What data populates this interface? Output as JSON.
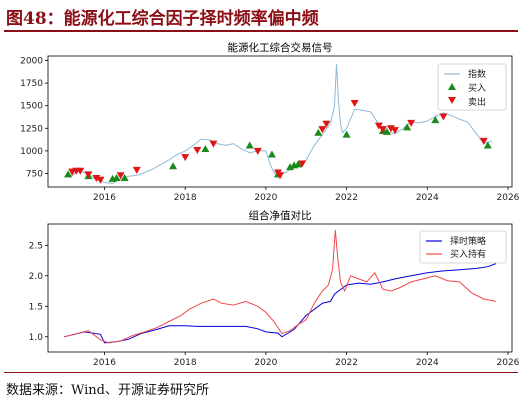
{
  "header": {
    "title": "图48：能源化工综合因子择时频率偏中频"
  },
  "footer": {
    "source": "数据来源：Wind、开源证券研究所"
  },
  "colors": {
    "brand": "#8b0f15",
    "index": "#8fbad8",
    "buy": "#1a8a1a",
    "sell": "#e01515",
    "strategy": "#0000dd",
    "hold": "#f04a4a"
  },
  "chart_data": [
    {
      "type": "line",
      "title": "能源化工综合交易信号",
      "xlim": [
        2014.6,
        2026.1
      ],
      "ylim": [
        600,
        2050
      ],
      "xticks": [
        2016,
        2018,
        2020,
        2022,
        2024,
        2026
      ],
      "yticks": [
        750,
        1000,
        1250,
        1500,
        1750,
        2000
      ],
      "legend_position": "upper right",
      "series": [
        {
          "name": "指数",
          "x": [
            2015.0,
            2015.2,
            2015.4,
            2015.6,
            2015.8,
            2016.0,
            2016.2,
            2016.4,
            2016.6,
            2016.8,
            2017.0,
            2017.2,
            2017.4,
            2017.6,
            2017.8,
            2018.0,
            2018.2,
            2018.4,
            2018.6,
            2018.8,
            2019.0,
            2019.2,
            2019.4,
            2019.6,
            2019.8,
            2020.0,
            2020.1,
            2020.2,
            2020.3,
            2020.4,
            2020.6,
            2020.8,
            2021.0,
            2021.2,
            2021.4,
            2021.5,
            2021.6,
            2021.7,
            2021.75,
            2021.8,
            2021.85,
            2021.9,
            2022.0,
            2022.2,
            2022.4,
            2022.6,
            2022.8,
            2023.0,
            2023.2,
            2023.4,
            2023.6,
            2023.8,
            2024.0,
            2024.2,
            2024.4,
            2024.6,
            2024.8,
            2025.0,
            2025.2,
            2025.4,
            2025.6
          ],
          "values": [
            710,
            730,
            780,
            740,
            680,
            650,
            640,
            690,
            720,
            730,
            760,
            800,
            850,
            900,
            960,
            1000,
            1060,
            1130,
            1120,
            1080,
            1060,
            1080,
            1020,
            980,
            1000,
            1000,
            860,
            760,
            730,
            740,
            790,
            840,
            900,
            1060,
            1180,
            1240,
            1300,
            1500,
            1960,
            1550,
            1300,
            1200,
            1250,
            1460,
            1450,
            1430,
            1290,
            1210,
            1190,
            1250,
            1320,
            1310,
            1330,
            1380,
            1420,
            1390,
            1350,
            1320,
            1200,
            1080,
            1110
          ]
        }
      ],
      "signals": {
        "buy": {
          "name": "买入",
          "x": [
            2015.1,
            2015.6,
            2016.2,
            2016.3,
            2016.5,
            2017.7,
            2018.5,
            2019.6,
            2020.15,
            2020.3,
            2020.6,
            2020.7,
            2020.8,
            2021.3,
            2022.0,
            2022.9,
            2023.0,
            2023.5,
            2024.2,
            2025.5
          ],
          "values": [
            740,
            720,
            690,
            700,
            700,
            830,
            1020,
            1060,
            960,
            740,
            820,
            840,
            850,
            1200,
            1180,
            1220,
            1210,
            1260,
            1340,
            1060
          ]
        },
        "sell": {
          "name": "卖出",
          "x": [
            2015.2,
            2015.3,
            2015.4,
            2015.6,
            2015.8,
            2015.9,
            2016.4,
            2016.8,
            2018.0,
            2018.3,
            2018.7,
            2019.8,
            2020.3,
            2020.35,
            2020.9,
            2021.4,
            2021.5,
            2022.2,
            2022.8,
            2022.9,
            2023.1,
            2023.2,
            2023.6,
            2024.4,
            2025.4
          ],
          "values": [
            770,
            780,
            780,
            740,
            700,
            680,
            730,
            790,
            930,
            1010,
            1080,
            1000,
            760,
            730,
            860,
            1240,
            1300,
            1530,
            1280,
            1240,
            1250,
            1230,
            1310,
            1380,
            1110
          ]
        }
      }
    },
    {
      "type": "line",
      "title": "组合净值对比",
      "xlim": [
        2014.6,
        2026.1
      ],
      "ylim": [
        0.75,
        2.85
      ],
      "xticks": [
        2016,
        2018,
        2020,
        2022,
        2024,
        2026
      ],
      "yticks": [
        1.0,
        1.5,
        2.0,
        2.5
      ],
      "legend_position": "upper right",
      "series": [
        {
          "name": "择时策略",
          "x": [
            2015.0,
            2015.5,
            2015.9,
            2016.0,
            2016.3,
            2016.6,
            2016.9,
            2017.3,
            2017.6,
            2018.0,
            2018.3,
            2018.7,
            2019.0,
            2019.5,
            2019.8,
            2020.0,
            2020.3,
            2020.4,
            2020.7,
            2021.0,
            2021.2,
            2021.4,
            2021.6,
            2021.7,
            2021.8,
            2022.0,
            2022.3,
            2022.6,
            2022.9,
            2023.2,
            2023.6,
            2024.0,
            2024.4,
            2024.8,
            2025.2,
            2025.5,
            2025.7
          ],
          "values": [
            1.0,
            1.08,
            1.04,
            0.9,
            0.92,
            0.96,
            1.05,
            1.12,
            1.18,
            1.18,
            1.17,
            1.17,
            1.17,
            1.17,
            1.13,
            1.08,
            1.06,
            1.0,
            1.12,
            1.35,
            1.45,
            1.55,
            1.58,
            1.7,
            1.75,
            1.85,
            1.88,
            1.86,
            1.9,
            1.95,
            2.0,
            2.05,
            2.08,
            2.1,
            2.12,
            2.15,
            2.2
          ]
        },
        {
          "name": "买入持有",
          "x": [
            2015.0,
            2015.3,
            2015.6,
            2015.9,
            2016.1,
            2016.4,
            2016.7,
            2017.0,
            2017.3,
            2017.6,
            2017.9,
            2018.1,
            2018.4,
            2018.7,
            2018.9,
            2019.2,
            2019.5,
            2019.8,
            2020.0,
            2020.2,
            2020.4,
            2020.6,
            2020.8,
            2021.0,
            2021.2,
            2021.4,
            2021.55,
            2021.65,
            2021.72,
            2021.78,
            2021.85,
            2021.95,
            2022.1,
            2022.3,
            2022.5,
            2022.7,
            2022.9,
            2023.1,
            2023.3,
            2023.6,
            2023.9,
            2024.2,
            2024.5,
            2024.8,
            2025.1,
            2025.4,
            2025.7
          ],
          "values": [
            1.0,
            1.05,
            1.1,
            0.95,
            0.9,
            0.93,
            1.02,
            1.08,
            1.15,
            1.25,
            1.35,
            1.45,
            1.55,
            1.62,
            1.55,
            1.52,
            1.58,
            1.5,
            1.4,
            1.25,
            1.05,
            1.1,
            1.2,
            1.28,
            1.55,
            1.75,
            1.85,
            2.1,
            2.75,
            2.3,
            1.9,
            1.75,
            2.0,
            1.95,
            1.9,
            2.05,
            1.78,
            1.75,
            1.8,
            1.9,
            1.95,
            2.0,
            1.92,
            1.9,
            1.72,
            1.62,
            1.58
          ]
        }
      ]
    }
  ]
}
